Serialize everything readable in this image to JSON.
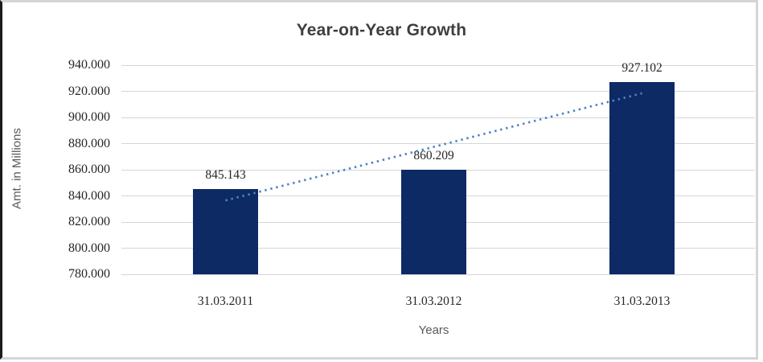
{
  "chart_data": {
    "type": "bar",
    "title": "Year-on-Year Growth",
    "xlabel": "Years",
    "ylabel": "Amt. in Millions",
    "categories": [
      "31.03.2011",
      "31.03.2012",
      "31.03.2013"
    ],
    "values": [
      845.143,
      860.209,
      927.102
    ],
    "value_labels": [
      "845.143",
      "860.209",
      "927.102"
    ],
    "ylim": [
      780,
      940
    ],
    "ytick_step": 20,
    "ytick_labels": [
      "780.000",
      "800.000",
      "820.000",
      "840.000",
      "860.000",
      "880.000",
      "900.000",
      "920.000",
      "940.000"
    ],
    "grid": true,
    "legend_position": "none",
    "trendline": {
      "type": "linear",
      "style": "dotted",
      "y_at_first_category": 836.5,
      "y_at_last_category": 918.5
    },
    "colors": {
      "bar": "#0d2a64",
      "trendline": "#4d82c4",
      "gridline": "#d6d6d6",
      "title_text": "#3f3f3f",
      "axis_text": "#262626",
      "axis_title_text": "#595959"
    }
  }
}
